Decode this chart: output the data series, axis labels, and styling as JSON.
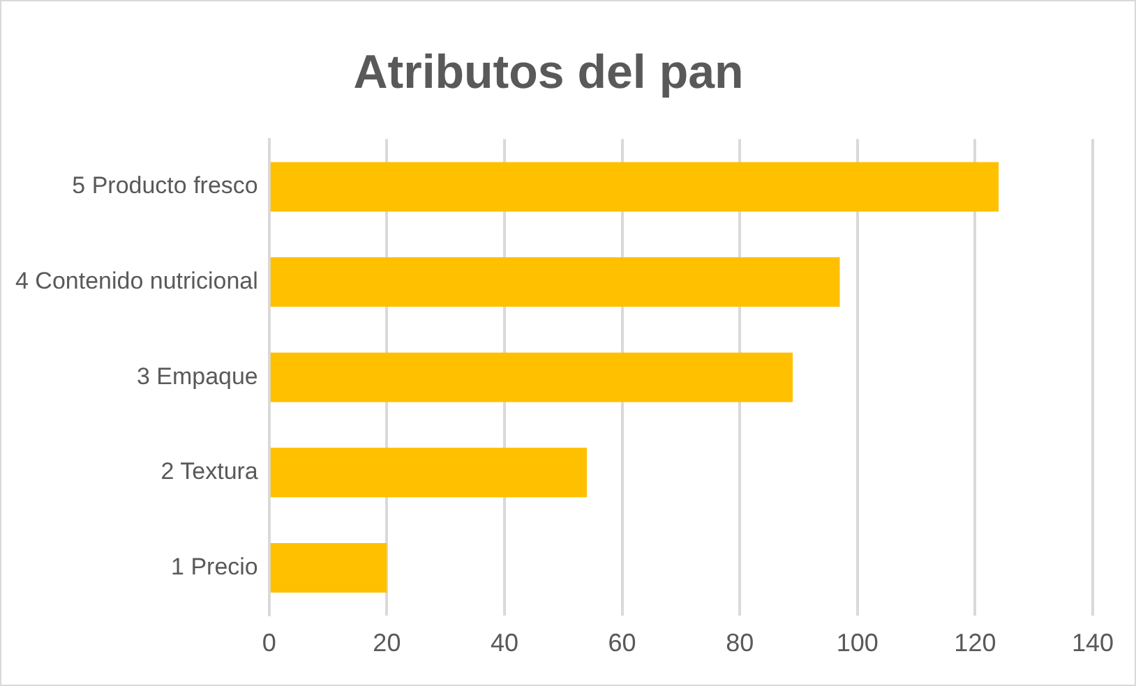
{
  "chart_data": {
    "type": "bar",
    "orientation": "horizontal",
    "title": "Atributos del pan",
    "categories": [
      "5 Producto fresco",
      "4 Contenido nutricional",
      "3 Empaque",
      "2 Textura",
      "1 Precio"
    ],
    "values": [
      124,
      97,
      89,
      54,
      20
    ],
    "color": "#ffc000",
    "xlim": [
      0,
      140
    ],
    "xticks": [
      0,
      20,
      40,
      60,
      80,
      100,
      120,
      140
    ],
    "grid": "x",
    "legend": false
  }
}
